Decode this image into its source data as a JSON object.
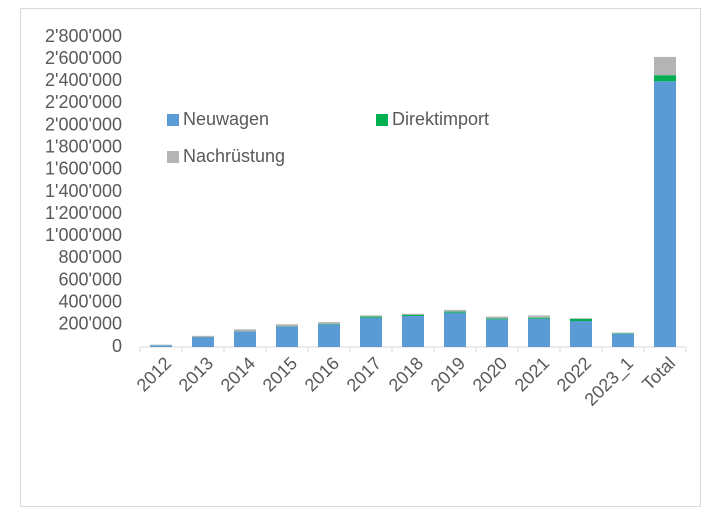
{
  "chart_data": {
    "type": "stacked_bar",
    "categories": [
      "2012",
      "2013",
      "2014",
      "2015",
      "2016",
      "2017",
      "2018",
      "2019",
      "2020",
      "2021",
      "2022",
      "2023_1",
      "Total"
    ],
    "series": [
      {
        "name": "Neuwagen",
        "color": "#5b9bd5",
        "values": [
          15000,
          90000,
          140000,
          185000,
          205000,
          265000,
          280000,
          310000,
          250000,
          255000,
          235000,
          120000,
          2400000
        ]
      },
      {
        "name": "Direktimport",
        "color": "#00b050",
        "values": [
          1000,
          1000,
          2000,
          3000,
          5000,
          10000,
          12000,
          10000,
          8000,
          10000,
          20000,
          5000,
          55000
        ]
      },
      {
        "name": "Nachrüstung",
        "color": "#b4b4b4",
        "values": [
          5000,
          10000,
          18000,
          17000,
          15000,
          10000,
          8000,
          15000,
          17000,
          20000,
          5000,
          5000,
          165000
        ]
      }
    ],
    "ylim": [
      0,
      2800000
    ],
    "yticks": [
      0,
      {
        "value": 200000,
        "label": "200'000"
      },
      {
        "value": 400000,
        "label": "400'000"
      },
      {
        "value": 600000,
        "label": "600'000"
      },
      {
        "value": 800000,
        "label": "800'000"
      },
      {
        "value": 1000000,
        "label": "1'000'000"
      },
      {
        "value": 1200000,
        "label": "1'200'000"
      },
      {
        "value": 1400000,
        "label": "1'400'000"
      },
      {
        "value": 1600000,
        "label": "1'600'000"
      },
      {
        "value": 1800000,
        "label": "1'800'000"
      },
      {
        "value": 2000000,
        "label": "2'000'000"
      },
      {
        "value": 2200000,
        "label": "2'200'000"
      },
      {
        "value": 2400000,
        "label": "2'400'000"
      },
      {
        "value": 2600000,
        "label": "2'600'000"
      },
      {
        "value": 2800000,
        "label": "2'800'000"
      }
    ],
    "grid": false
  }
}
